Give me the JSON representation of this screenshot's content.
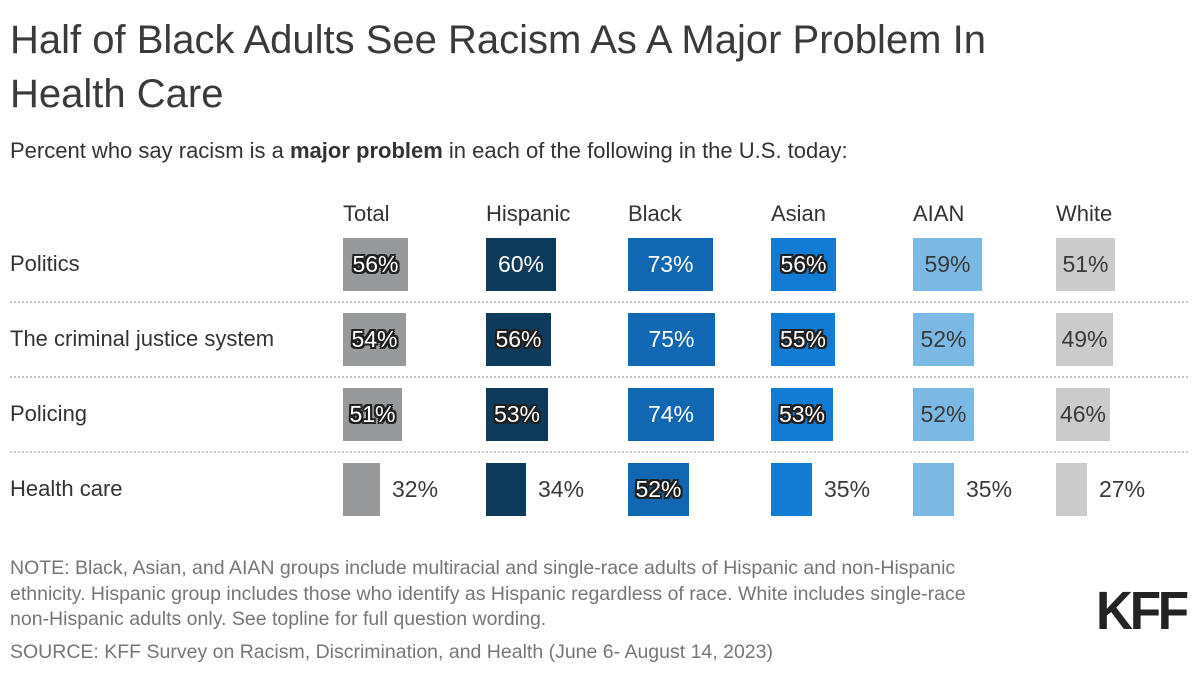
{
  "header": {
    "title_lines": [
      "Half of Black Adults See Racism As A Major Problem In",
      "Health Care"
    ],
    "subtitle_prefix": "Percent who say racism is a ",
    "subtitle_bold": "major problem",
    "subtitle_suffix": " in each of the following in the U.S. today:"
  },
  "chart_data": {
    "type": "bar",
    "unit": "percent",
    "title": "Half of Black Adults See Racism As A Major Problem In Health Care",
    "subtitle": "Percent who say racism is a major problem in each of the following in the U.S. today:",
    "value_range": [
      0,
      100
    ],
    "grid": "dotted row separators",
    "legend_position": "none (column headers above bars)",
    "columns": [
      {
        "name": "Total",
        "color": "#97999B",
        "label_color": "#ffffff"
      },
      {
        "name": "Hispanic",
        "color": "#0E3A5C",
        "label_color": "#ffffff"
      },
      {
        "name": "Black",
        "color": "#1267B2",
        "label_color": "#ffffff"
      },
      {
        "name": "Asian",
        "color": "#127CD4",
        "label_color": "#ffffff"
      },
      {
        "name": "AIAN",
        "color": "#7CB8E4",
        "label_color": "#3a3a3a"
      },
      {
        "name": "White",
        "color": "#CBCBCB",
        "label_color": "#3a3a3a"
      }
    ],
    "rows": [
      {
        "label": "Politics",
        "cells": [
          {
            "value": 56,
            "label": "56%",
            "inside": true,
            "halo": true
          },
          {
            "value": 60,
            "label": "60%",
            "inside": true,
            "halo": false
          },
          {
            "value": 73,
            "label": "73%",
            "inside": true,
            "halo": false
          },
          {
            "value": 56,
            "label": "56%",
            "inside": true,
            "halo": true
          },
          {
            "value": 59,
            "label": "59%",
            "inside": true,
            "halo": false
          },
          {
            "value": 51,
            "label": "51%",
            "inside": true,
            "halo": false
          }
        ]
      },
      {
        "label": "The criminal justice system",
        "cells": [
          {
            "value": 54,
            "label": "54%",
            "inside": true,
            "halo": true
          },
          {
            "value": 56,
            "label": "56%",
            "inside": true,
            "halo": true
          },
          {
            "value": 75,
            "label": "75%",
            "inside": true,
            "halo": false
          },
          {
            "value": 55,
            "label": "55%",
            "inside": true,
            "halo": true
          },
          {
            "value": 52,
            "label": "52%",
            "inside": true,
            "halo": false
          },
          {
            "value": 49,
            "label": "49%",
            "inside": true,
            "halo": false
          }
        ]
      },
      {
        "label": "Policing",
        "cells": [
          {
            "value": 51,
            "label": "51%",
            "inside": true,
            "halo": true
          },
          {
            "value": 53,
            "label": "53%",
            "inside": true,
            "halo": true
          },
          {
            "value": 74,
            "label": "74%",
            "inside": true,
            "halo": false
          },
          {
            "value": 53,
            "label": "53%",
            "inside": true,
            "halo": true
          },
          {
            "value": 52,
            "label": "52%",
            "inside": true,
            "halo": false
          },
          {
            "value": 46,
            "label": "46%",
            "inside": true,
            "halo": false
          }
        ]
      },
      {
        "label": "Health care",
        "cells": [
          {
            "value": 32,
            "label": "32%",
            "inside": false,
            "halo": false
          },
          {
            "value": 34,
            "label": "34%",
            "inside": false,
            "halo": false
          },
          {
            "value": 52,
            "label": "52%",
            "inside": true,
            "halo": true
          },
          {
            "value": 35,
            "label": "35%",
            "inside": false,
            "halo": false
          },
          {
            "value": 35,
            "label": "35%",
            "inside": false,
            "halo": false
          },
          {
            "value": 27,
            "label": "27%",
            "inside": false,
            "halo": false
          }
        ]
      }
    ]
  },
  "footer": {
    "note_lines": [
      "NOTE: Black, Asian, and AIAN groups include multiracial and single-race adults of Hispanic and non-Hispanic",
      "ethnicity. Hispanic group includes those who identify as Hispanic regardless of race. White includes single-race",
      "non-Hispanic adults only. See topline for full question wording."
    ],
    "source": "SOURCE: KFF Survey on Racism, Discrimination, and Health (June 6- August 14, 2023)",
    "logo": "KFF"
  }
}
